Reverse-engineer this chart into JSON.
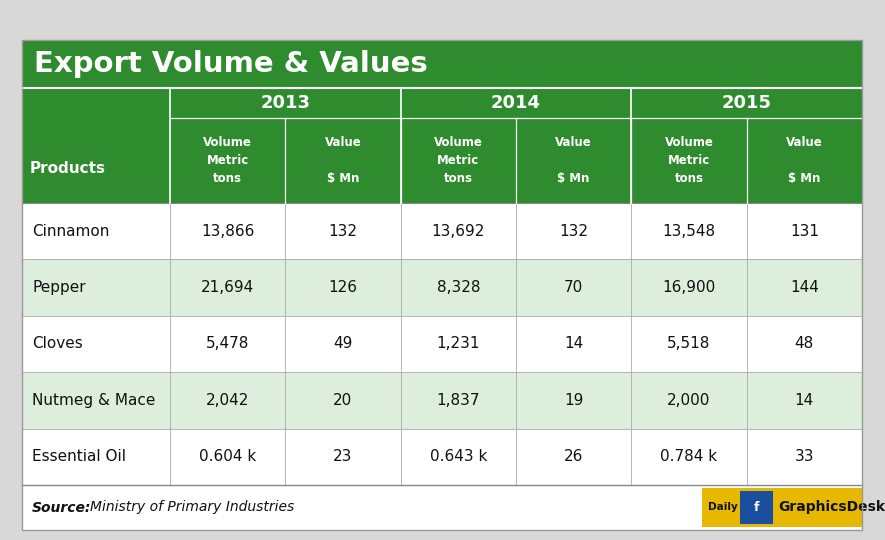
{
  "title": "Export Volume & Values",
  "years": [
    "2013",
    "2014",
    "2015"
  ],
  "col_headers_vol": [
    "Volume\nMetric\ntons",
    "Volume\nMetric\ntons",
    "Volume\nMetric\ntons"
  ],
  "col_headers_val": [
    "Value\n\n$ Mn",
    "Value\n\n$ Mn",
    "Value\n\n$ Mn"
  ],
  "products": [
    "Cinnamon",
    "Pepper",
    "Cloves",
    "Nutmeg & Mace",
    "Essential Oil"
  ],
  "data": [
    [
      "13,866",
      "132",
      "13,692",
      "132",
      "13,548",
      "131"
    ],
    [
      "21,694",
      "126",
      "8,328",
      "70",
      "16,900",
      "144"
    ],
    [
      "5,478",
      "49",
      "1,231",
      "14",
      "5,518",
      "48"
    ],
    [
      "2,042",
      "20",
      "1,837",
      "19",
      "2,000",
      "14"
    ],
    [
      "0.604 k",
      "23",
      "0.643 k",
      "26",
      "0.784 k",
      "33"
    ]
  ],
  "source_bold": "Source:",
  "source_italic": " Ministry of Primary Industries",
  "green_dark": "#2e8b2e",
  "white": "#ffffff",
  "row_white": "#ffffff",
  "row_light": "#ddeedd",
  "bg_outer": "#d8d8d8",
  "footer_bg": "#ffffff",
  "gd_yellow": "#e8b800",
  "gd_blue": "#1a4fa0",
  "gd_blue2": "#3060c0",
  "text_dark": "#111111"
}
